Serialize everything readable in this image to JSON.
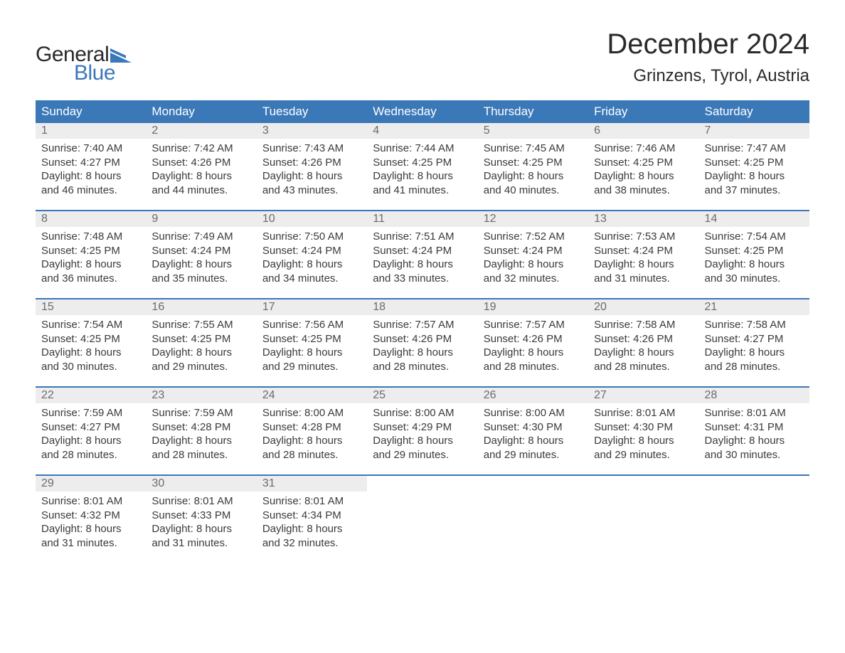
{
  "brand": {
    "word1": "General",
    "word2": "Blue",
    "logo_color": "#3b78b8"
  },
  "title": "December 2024",
  "location": "Grinzens, Tyrol, Austria",
  "colors": {
    "header_bg": "#3b78b8",
    "header_text": "#ffffff",
    "daynum_bg": "#ededed",
    "daynum_text": "#6b6b6b",
    "body_text": "#3a3a3a",
    "week_border": "#3b78b8"
  },
  "day_names": [
    "Sunday",
    "Monday",
    "Tuesday",
    "Wednesday",
    "Thursday",
    "Friday",
    "Saturday"
  ],
  "days": [
    {
      "n": "1",
      "sunrise": "7:40 AM",
      "sunset": "4:27 PM",
      "dl1": "Daylight: 8 hours",
      "dl2": "and 46 minutes."
    },
    {
      "n": "2",
      "sunrise": "7:42 AM",
      "sunset": "4:26 PM",
      "dl1": "Daylight: 8 hours",
      "dl2": "and 44 minutes."
    },
    {
      "n": "3",
      "sunrise": "7:43 AM",
      "sunset": "4:26 PM",
      "dl1": "Daylight: 8 hours",
      "dl2": "and 43 minutes."
    },
    {
      "n": "4",
      "sunrise": "7:44 AM",
      "sunset": "4:25 PM",
      "dl1": "Daylight: 8 hours",
      "dl2": "and 41 minutes."
    },
    {
      "n": "5",
      "sunrise": "7:45 AM",
      "sunset": "4:25 PM",
      "dl1": "Daylight: 8 hours",
      "dl2": "and 40 minutes."
    },
    {
      "n": "6",
      "sunrise": "7:46 AM",
      "sunset": "4:25 PM",
      "dl1": "Daylight: 8 hours",
      "dl2": "and 38 minutes."
    },
    {
      "n": "7",
      "sunrise": "7:47 AM",
      "sunset": "4:25 PM",
      "dl1": "Daylight: 8 hours",
      "dl2": "and 37 minutes."
    },
    {
      "n": "8",
      "sunrise": "7:48 AM",
      "sunset": "4:25 PM",
      "dl1": "Daylight: 8 hours",
      "dl2": "and 36 minutes."
    },
    {
      "n": "9",
      "sunrise": "7:49 AM",
      "sunset": "4:24 PM",
      "dl1": "Daylight: 8 hours",
      "dl2": "and 35 minutes."
    },
    {
      "n": "10",
      "sunrise": "7:50 AM",
      "sunset": "4:24 PM",
      "dl1": "Daylight: 8 hours",
      "dl2": "and 34 minutes."
    },
    {
      "n": "11",
      "sunrise": "7:51 AM",
      "sunset": "4:24 PM",
      "dl1": "Daylight: 8 hours",
      "dl2": "and 33 minutes."
    },
    {
      "n": "12",
      "sunrise": "7:52 AM",
      "sunset": "4:24 PM",
      "dl1": "Daylight: 8 hours",
      "dl2": "and 32 minutes."
    },
    {
      "n": "13",
      "sunrise": "7:53 AM",
      "sunset": "4:24 PM",
      "dl1": "Daylight: 8 hours",
      "dl2": "and 31 minutes."
    },
    {
      "n": "14",
      "sunrise": "7:54 AM",
      "sunset": "4:25 PM",
      "dl1": "Daylight: 8 hours",
      "dl2": "and 30 minutes."
    },
    {
      "n": "15",
      "sunrise": "7:54 AM",
      "sunset": "4:25 PM",
      "dl1": "Daylight: 8 hours",
      "dl2": "and 30 minutes."
    },
    {
      "n": "16",
      "sunrise": "7:55 AM",
      "sunset": "4:25 PM",
      "dl1": "Daylight: 8 hours",
      "dl2": "and 29 minutes."
    },
    {
      "n": "17",
      "sunrise": "7:56 AM",
      "sunset": "4:25 PM",
      "dl1": "Daylight: 8 hours",
      "dl2": "and 29 minutes."
    },
    {
      "n": "18",
      "sunrise": "7:57 AM",
      "sunset": "4:26 PM",
      "dl1": "Daylight: 8 hours",
      "dl2": "and 28 minutes."
    },
    {
      "n": "19",
      "sunrise": "7:57 AM",
      "sunset": "4:26 PM",
      "dl1": "Daylight: 8 hours",
      "dl2": "and 28 minutes."
    },
    {
      "n": "20",
      "sunrise": "7:58 AM",
      "sunset": "4:26 PM",
      "dl1": "Daylight: 8 hours",
      "dl2": "and 28 minutes."
    },
    {
      "n": "21",
      "sunrise": "7:58 AM",
      "sunset": "4:27 PM",
      "dl1": "Daylight: 8 hours",
      "dl2": "and 28 minutes."
    },
    {
      "n": "22",
      "sunrise": "7:59 AM",
      "sunset": "4:27 PM",
      "dl1": "Daylight: 8 hours",
      "dl2": "and 28 minutes."
    },
    {
      "n": "23",
      "sunrise": "7:59 AM",
      "sunset": "4:28 PM",
      "dl1": "Daylight: 8 hours",
      "dl2": "and 28 minutes."
    },
    {
      "n": "24",
      "sunrise": "8:00 AM",
      "sunset": "4:28 PM",
      "dl1": "Daylight: 8 hours",
      "dl2": "and 28 minutes."
    },
    {
      "n": "25",
      "sunrise": "8:00 AM",
      "sunset": "4:29 PM",
      "dl1": "Daylight: 8 hours",
      "dl2": "and 29 minutes."
    },
    {
      "n": "26",
      "sunrise": "8:00 AM",
      "sunset": "4:30 PM",
      "dl1": "Daylight: 8 hours",
      "dl2": "and 29 minutes."
    },
    {
      "n": "27",
      "sunrise": "8:01 AM",
      "sunset": "4:30 PM",
      "dl1": "Daylight: 8 hours",
      "dl2": "and 29 minutes."
    },
    {
      "n": "28",
      "sunrise": "8:01 AM",
      "sunset": "4:31 PM",
      "dl1": "Daylight: 8 hours",
      "dl2": "and 30 minutes."
    },
    {
      "n": "29",
      "sunrise": "8:01 AM",
      "sunset": "4:32 PM",
      "dl1": "Daylight: 8 hours",
      "dl2": "and 31 minutes."
    },
    {
      "n": "30",
      "sunrise": "8:01 AM",
      "sunset": "4:33 PM",
      "dl1": "Daylight: 8 hours",
      "dl2": "and 31 minutes."
    },
    {
      "n": "31",
      "sunrise": "8:01 AM",
      "sunset": "4:34 PM",
      "dl1": "Daylight: 8 hours",
      "dl2": "and 32 minutes."
    }
  ],
  "labels": {
    "sunrise_prefix": "Sunrise: ",
    "sunset_prefix": "Sunset: "
  },
  "layout": {
    "first_weekday_index": 0,
    "total_cells": 35
  }
}
